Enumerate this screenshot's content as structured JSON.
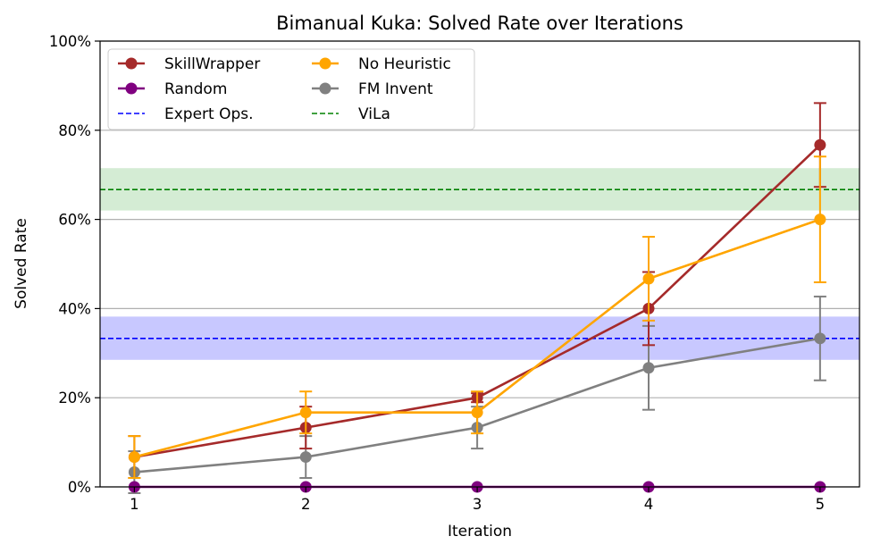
{
  "chart_data": {
    "type": "line",
    "title": "Bimanual Kuka: Solved Rate over Iterations",
    "xlabel": "Iteration",
    "ylabel": "Solved Rate",
    "x": [
      1,
      2,
      3,
      4,
      5
    ],
    "x_tick_labels": [
      "1",
      "2",
      "3",
      "4",
      "5"
    ],
    "xlim": [
      0.8,
      5.23
    ],
    "ylim": [
      0,
      100
    ],
    "y_ticks": [
      0,
      20,
      40,
      60,
      80,
      100
    ],
    "y_tick_labels": [
      "0%",
      "20%",
      "40%",
      "60%",
      "80%",
      "100%"
    ],
    "grid": "horizontal",
    "legend_position": "top-left",
    "series": [
      {
        "name": "SkillWrapper",
        "color": "#a52a2a",
        "values": [
          6.7,
          13.3,
          20.0,
          40.0,
          76.7
        ],
        "err": [
          4.7,
          4.7,
          1.0,
          8.2,
          9.4
        ]
      },
      {
        "name": "No Heuristic",
        "color": "#ffa500",
        "values": [
          6.7,
          16.7,
          16.7,
          46.7,
          60.0
        ],
        "err": [
          4.7,
          4.7,
          4.7,
          9.4,
          14.1
        ]
      },
      {
        "name": "Random",
        "color": "#800080",
        "values": [
          0,
          0,
          0,
          0,
          0
        ],
        "err": [
          0,
          0,
          0,
          0,
          0
        ]
      },
      {
        "name": "FM Invent",
        "color": "#808080",
        "values": [
          3.3,
          6.7,
          13.3,
          26.7,
          33.3
        ],
        "err": [
          4.7,
          4.7,
          4.7,
          9.4,
          9.4
        ]
      }
    ],
    "reference_lines": [
      {
        "name": "Expert Ops.",
        "color": "#0000ff",
        "band_color": "#c8c8ff",
        "value": 33.3,
        "band": [
          28.5,
          38.2
        ]
      },
      {
        "name": "ViLa",
        "color": "#008000",
        "band_color": "#d4ecd4",
        "value": 66.7,
        "band": [
          62.0,
          71.5
        ]
      }
    ],
    "legend_order": [
      "SkillWrapper",
      "No Heuristic",
      "Random",
      "FM Invent",
      "Expert Ops.",
      "ViLa"
    ]
  }
}
